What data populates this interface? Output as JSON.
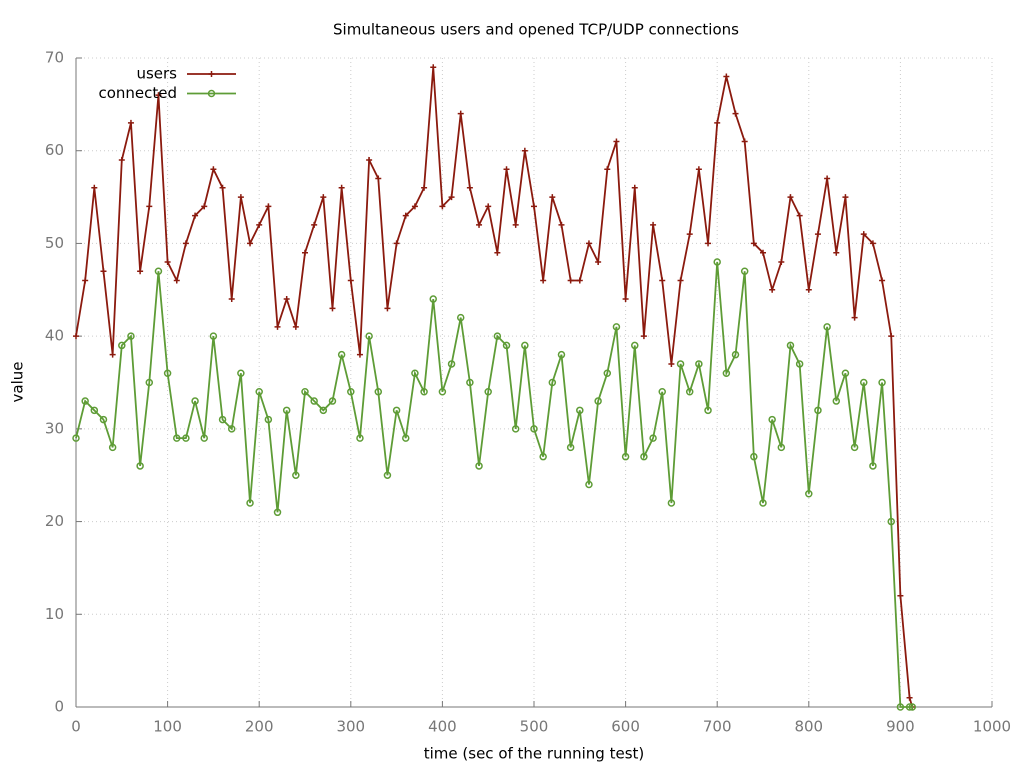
{
  "chart_data": {
    "type": "line",
    "title": "Simultaneous users and opened TCP/UDP connections",
    "xlabel": "time (sec of the running test)",
    "ylabel": "value",
    "x": [
      0,
      10,
      20,
      30,
      40,
      50,
      60,
      70,
      80,
      90,
      100,
      110,
      120,
      130,
      140,
      150,
      160,
      170,
      180,
      190,
      200,
      210,
      220,
      230,
      240,
      250,
      260,
      270,
      280,
      290,
      300,
      310,
      320,
      330,
      340,
      350,
      360,
      370,
      380,
      390,
      400,
      410,
      420,
      430,
      440,
      450,
      460,
      470,
      480,
      490,
      500,
      510,
      520,
      530,
      540,
      550,
      560,
      570,
      580,
      590,
      600,
      610,
      620,
      630,
      640,
      650,
      660,
      670,
      680,
      690,
      700,
      710,
      720,
      730,
      740,
      750,
      760,
      770,
      780,
      790,
      800,
      810,
      820,
      830,
      840,
      850,
      860,
      870,
      880,
      890,
      900,
      910,
      913
    ],
    "series": [
      {
        "name": "users",
        "color": "#8b1a0e",
        "marker": "plus",
        "values": [
          40,
          46,
          56,
          47,
          38,
          59,
          63,
          47,
          54,
          66,
          48,
          46,
          50,
          53,
          54,
          58,
          56,
          44,
          55,
          50,
          52,
          54,
          41,
          44,
          41,
          49,
          52,
          55,
          43,
          56,
          46,
          38,
          59,
          57,
          43,
          50,
          53,
          54,
          56,
          69,
          54,
          55,
          64,
          56,
          52,
          54,
          49,
          58,
          52,
          60,
          54,
          46,
          55,
          52,
          46,
          46,
          50,
          48,
          58,
          61,
          44,
          56,
          40,
          52,
          46,
          37,
          46,
          51,
          58,
          50,
          63,
          68,
          64,
          61,
          50,
          49,
          45,
          48,
          55,
          53,
          45,
          51,
          57,
          49,
          55,
          42,
          51,
          50,
          46,
          40,
          12,
          1,
          0
        ]
      },
      {
        "name": "connected",
        "color": "#5e9c36",
        "marker": "circle",
        "values": [
          29,
          33,
          32,
          31,
          28,
          39,
          40,
          26,
          35,
          47,
          36,
          29,
          29,
          33,
          29,
          40,
          31,
          30,
          36,
          22,
          34,
          31,
          21,
          32,
          25,
          34,
          33,
          32,
          33,
          38,
          34,
          29,
          40,
          34,
          25,
          32,
          29,
          36,
          34,
          44,
          34,
          37,
          42,
          35,
          26,
          34,
          40,
          39,
          30,
          39,
          30,
          27,
          35,
          38,
          28,
          32,
          24,
          33,
          36,
          41,
          27,
          39,
          27,
          29,
          34,
          22,
          37,
          34,
          37,
          32,
          48,
          36,
          38,
          47,
          27,
          22,
          31,
          28,
          39,
          37,
          23,
          32,
          41,
          33,
          36,
          28,
          35,
          26,
          35,
          20,
          0,
          0,
          0
        ]
      }
    ],
    "xlim": [
      0,
      1000
    ],
    "xticks": [
      0,
      100,
      200,
      300,
      400,
      500,
      600,
      700,
      800,
      900,
      1000
    ],
    "ylim": [
      0,
      70
    ],
    "yticks": [
      0,
      10,
      20,
      30,
      40,
      50,
      60,
      70
    ],
    "grid": true,
    "legend": "top-left"
  }
}
